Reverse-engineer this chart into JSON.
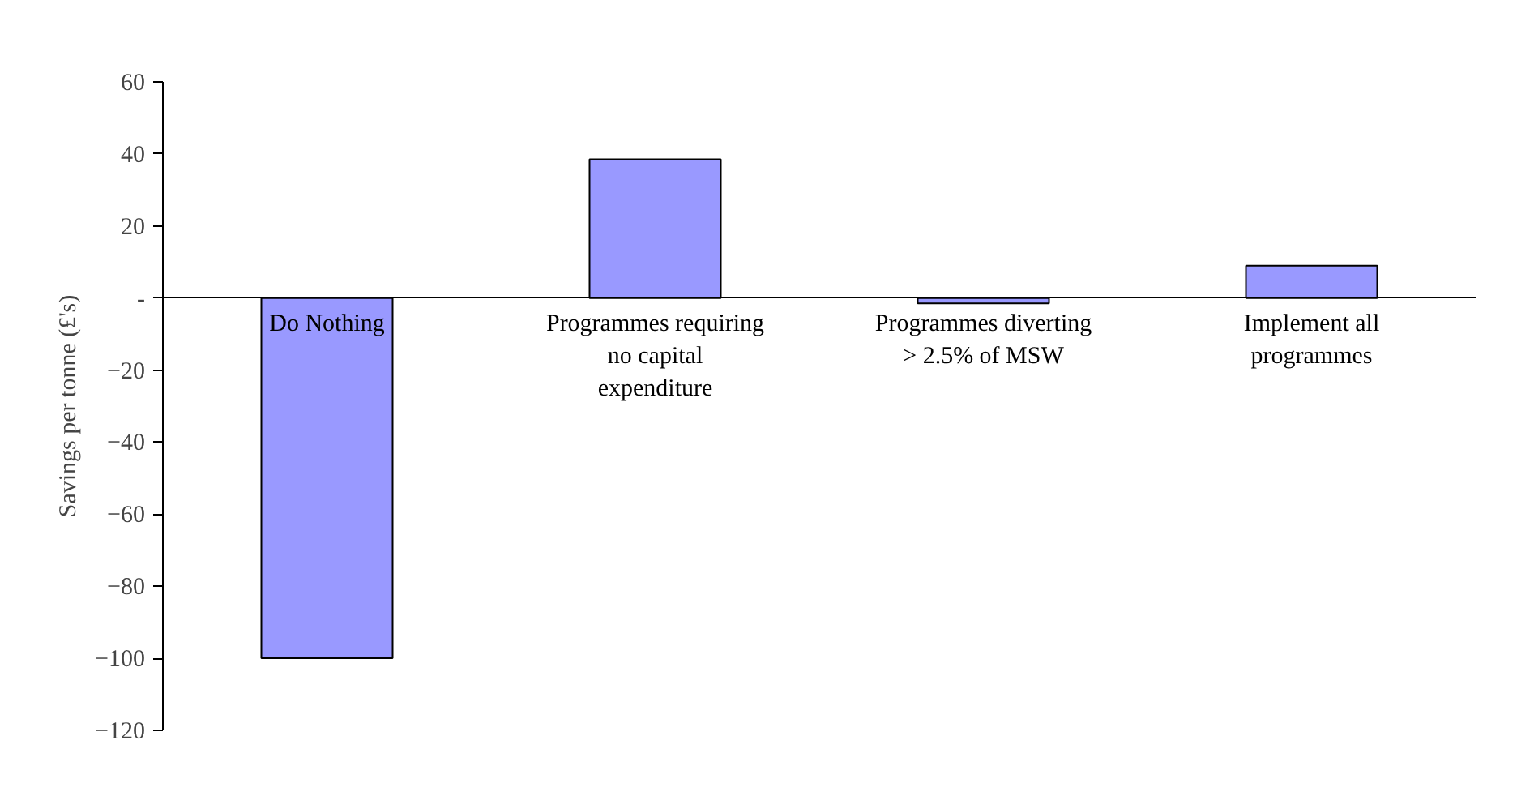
{
  "chart_data": {
    "type": "bar",
    "ylabel": "Savings per tonne (£'s)",
    "categories": [
      "Do Nothing",
      "Programmes requiring no capital expenditure",
      "Programmes diverting > 2.5% of MSW",
      "Implement all programmes"
    ],
    "values": [
      -100,
      38.5,
      -1.5,
      9
    ],
    "color": "#9999ff",
    "ylim": [
      -120,
      60
    ],
    "yticks": [
      60,
      40,
      20,
      {
        "value": 0,
        "label": "-"
      },
      -20,
      -40,
      -60,
      -80,
      -100,
      -120
    ]
  }
}
